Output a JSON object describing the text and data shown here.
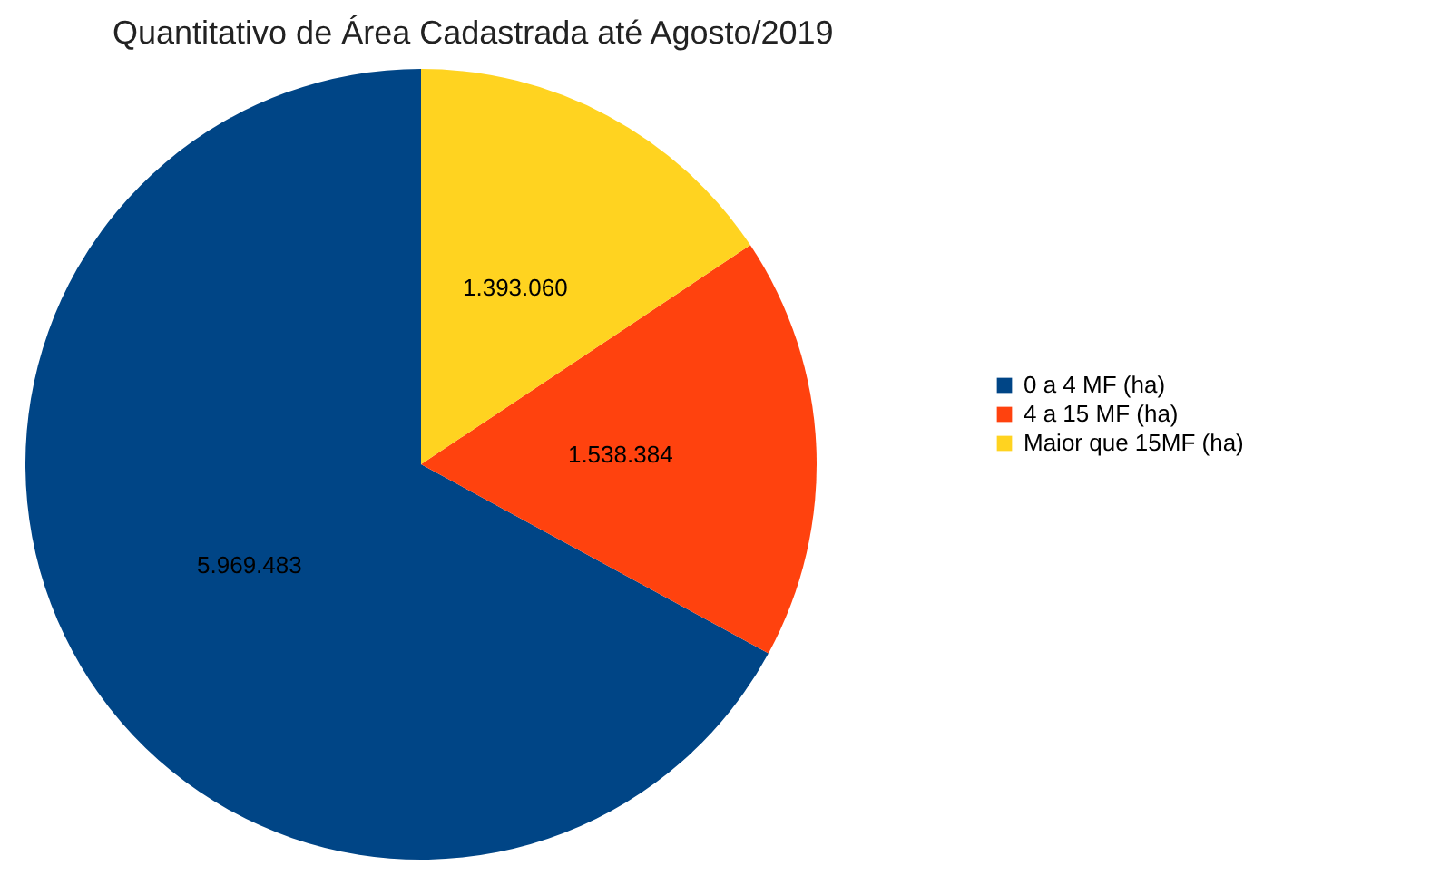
{
  "chart_data": {
    "type": "pie",
    "title": "Quantitativo de Área Cadastrada até Agosto/2019",
    "categories": [
      "0 a 4 MF (ha)",
      "4 a 15 MF (ha)",
      "Maior que 15MF (ha)"
    ],
    "values": [
      5969483,
      1538384,
      1393060
    ],
    "colors": [
      "#004586",
      "#ff420e",
      "#ffd320"
    ],
    "value_labels": [
      "5.969.483",
      "1.538.384",
      "1.393.060"
    ],
    "legend": "right"
  }
}
